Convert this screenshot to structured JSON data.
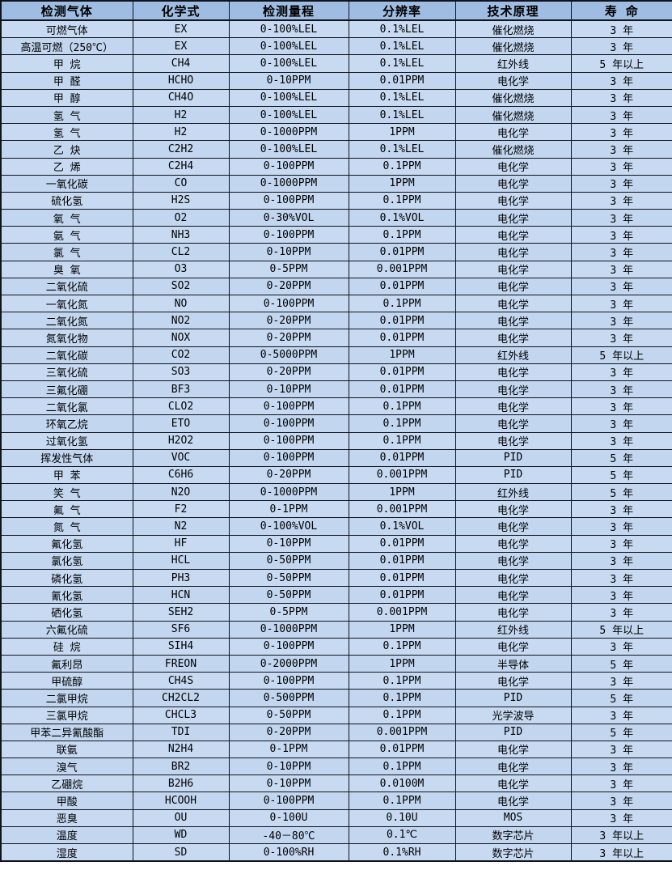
{
  "colors": {
    "header_bg": "#9fbde2",
    "row_bg": "#c7daf2",
    "row_bg_alt": "#c2d6ef",
    "border": "#10131c",
    "text": "#000000"
  },
  "table": {
    "headers": [
      "检测气体",
      "化学式",
      "检测量程",
      "分辨率",
      "技术原理",
      "寿 命"
    ],
    "rows": [
      [
        "可燃气体",
        "EX",
        "0-100%LEL",
        "0.1%LEL",
        "催化燃烧",
        "3 年"
      ],
      [
        "高温可燃（250℃）",
        "EX",
        "0-100%LEL",
        "0.1%LEL",
        "催化燃烧",
        "3 年"
      ],
      [
        "甲 烷",
        "CH4",
        "0-100%LEL",
        "0.1%LEL",
        "红外线",
        "5 年以上"
      ],
      [
        "甲 醛",
        "HCHO",
        "0-10PPM",
        "0.01PPM",
        "电化学",
        "3 年"
      ],
      [
        "甲 醇",
        "CH4O",
        "0-100%LEL",
        "0.1%LEL",
        "催化燃烧",
        "3 年"
      ],
      [
        "氢 气",
        "H2",
        "0-100%LEL",
        "0.1%LEL",
        "催化燃烧",
        "3 年"
      ],
      [
        "氢 气",
        "H2",
        "0-1000PPM",
        "1PPM",
        "电化学",
        "3 年"
      ],
      [
        "乙 炔",
        "C2H2",
        "0-100%LEL",
        "0.1%LEL",
        "催化燃烧",
        "3 年"
      ],
      [
        "乙 烯",
        "C2H4",
        "0-100PPM",
        "0.1PPM",
        "电化学",
        "3 年"
      ],
      [
        "一氧化碳",
        "CO",
        "0-1000PPM",
        "1PPM",
        "电化学",
        "3 年"
      ],
      [
        "硫化氢",
        "H2S",
        "0-100PPM",
        "0.1PPM",
        "电化学",
        "3 年"
      ],
      [
        "氧 气",
        "O2",
        "0-30%VOL",
        "0.1%VOL",
        "电化学",
        "3 年"
      ],
      [
        "氨 气",
        "NH3",
        "0-100PPM",
        "0.1PPM",
        "电化学",
        "3 年"
      ],
      [
        "氯 气",
        "CL2",
        "0-10PPM",
        "0.01PPM",
        "电化学",
        "3 年"
      ],
      [
        "臭 氧",
        "O3",
        "0-5PPM",
        "0.001PPM",
        "电化学",
        "3 年"
      ],
      [
        "二氧化硫",
        "SO2",
        "0-20PPM",
        "0.01PPM",
        "电化学",
        "3 年"
      ],
      [
        "一氧化氮",
        "NO",
        "0-100PPM",
        "0.1PPM",
        "电化学",
        "3 年"
      ],
      [
        "二氧化氮",
        "NO2",
        "0-20PPM",
        "0.01PPM",
        "电化学",
        "3 年"
      ],
      [
        "氮氧化物",
        "NOX",
        "0-20PPM",
        "0.01PPM",
        "电化学",
        "3 年"
      ],
      [
        "二氧化碳",
        "CO2",
        "0-5000PPM",
        "1PPM",
        "红外线",
        "5 年以上"
      ],
      [
        "三氧化硫",
        "SO3",
        "0-20PPM",
        "0.01PPM",
        "电化学",
        "3 年"
      ],
      [
        "三氟化硼",
        "BF3",
        "0-10PPM",
        "0.01PPM",
        "电化学",
        "3 年"
      ],
      [
        "二氧化氯",
        "CLO2",
        "0-100PPM",
        "0.1PPM",
        "电化学",
        "3 年"
      ],
      [
        "环氧乙烷",
        "ETO",
        "0-100PPM",
        "0.1PPM",
        "电化学",
        "3 年"
      ],
      [
        "过氧化氢",
        "H2O2",
        "0-100PPM",
        "0.1PPM",
        "电化学",
        "3 年"
      ],
      [
        "挥发性气体",
        "VOC",
        "0-100PPM",
        "0.01PPM",
        "PID",
        "5 年"
      ],
      [
        "甲 苯",
        "C6H6",
        "0-20PPM",
        "0.001PPM",
        "PID",
        "5 年"
      ],
      [
        "笑 气",
        "N2O",
        "0-1000PPM",
        "1PPM",
        "红外线",
        "5 年"
      ],
      [
        "氟 气",
        "F2",
        "0-1PPM",
        "0.001PPM",
        "电化学",
        "3 年"
      ],
      [
        "氮 气",
        "N2",
        "0-100%VOL",
        "0.1%VOL",
        "电化学",
        "3 年"
      ],
      [
        "氟化氢",
        "HF",
        "0-10PPM",
        "0.01PPM",
        "电化学",
        "3 年"
      ],
      [
        "氯化氢",
        "HCL",
        "0-50PPM",
        "0.01PPM",
        "电化学",
        "3 年"
      ],
      [
        "磷化氢",
        "PH3",
        "0-50PPM",
        "0.01PPM",
        "电化学",
        "3 年"
      ],
      [
        "氰化氢",
        "HCN",
        "0-50PPM",
        "0.01PPM",
        "电化学",
        "3 年"
      ],
      [
        "硒化氢",
        "SEH2",
        "0-5PPM",
        "0.001PPM",
        "电化学",
        "3 年"
      ],
      [
        "六氟化硫",
        "SF6",
        "0-1000PPM",
        "1PPM",
        "红外线",
        "5 年以上"
      ],
      [
        "硅 烷",
        "SIH4",
        "0-100PPM",
        "0.1PPM",
        "电化学",
        "3 年"
      ],
      [
        "氟利昂",
        "FREON",
        "0-2000PPM",
        "1PPM",
        "半导体",
        "5 年"
      ],
      [
        "甲硫醇",
        "CH4S",
        "0-100PPM",
        "0.1PPM",
        "电化学",
        "3 年"
      ],
      [
        "二氯甲烷",
        "CH2CL2",
        "0-500PPM",
        "0.1PPM",
        "PID",
        "5 年"
      ],
      [
        "三氯甲烷",
        "CHCL3",
        "0-50PPM",
        "0.1PPM",
        "光学波导",
        "3 年"
      ],
      [
        "甲苯二异氰酸酯",
        "TDI",
        "0-20PPM",
        "0.001PPM",
        "PID",
        "5 年"
      ],
      [
        "联氨",
        "N2H4",
        "0-1PPM",
        "0.01PPM",
        "电化学",
        "3 年"
      ],
      [
        "溴气",
        "BR2",
        "0-10PPM",
        "0.1PPM",
        "电化学",
        "3 年"
      ],
      [
        "乙硼烷",
        "B2H6",
        "0-10PPM",
        "0.0100M",
        "电化学",
        "3 年"
      ],
      [
        "甲酸",
        "HCOOH",
        "0-100PPM",
        "0.1PPM",
        "电化学",
        "3 年"
      ],
      [
        "恶臭",
        "OU",
        "0-100U",
        "0.10U",
        "MOS",
        "3 年"
      ],
      [
        "温度",
        "WD",
        "-40－80℃",
        "0.1℃",
        "数字芯片",
        "3 年以上"
      ],
      [
        "湿度",
        "SD",
        "0-100%RH",
        "0.1%RH",
        "数字芯片",
        "3 年以上"
      ]
    ]
  }
}
